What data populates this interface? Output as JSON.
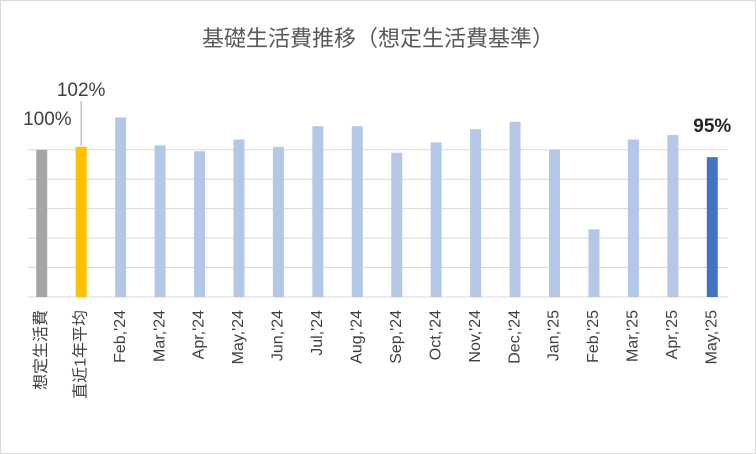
{
  "chart_data": {
    "type": "bar",
    "title": "基礎生活費推移（想定生活費基準）",
    "categories": [
      "想定生活費",
      "直近1年平均",
      "Feb,'24",
      "Mar,'24",
      "Apr,'24",
      "May,'24",
      "Jun,'24",
      "Jul,'24",
      "Aug,'24",
      "Sep,'24",
      "Oct,'24",
      "Nov,'24",
      "Dec,'24",
      "Jan,'25",
      "Feb,'25",
      "Mar,'25",
      "Apr,'25",
      "May,'25"
    ],
    "values": [
      100,
      102,
      122,
      103,
      99,
      107,
      102,
      116,
      116,
      98,
      105,
      114,
      119,
      100,
      46,
      107,
      110,
      95
    ],
    "value_labels": [
      "100%",
      "102%",
      null,
      null,
      null,
      null,
      null,
      null,
      null,
      null,
      null,
      null,
      null,
      null,
      null,
      null,
      null,
      "95%"
    ],
    "colors": [
      "#a5a5a5",
      "#ffc000",
      "#b4c7e7",
      "#b4c7e7",
      "#b4c7e7",
      "#b4c7e7",
      "#b4c7e7",
      "#b4c7e7",
      "#b4c7e7",
      "#b4c7e7",
      "#b4c7e7",
      "#b4c7e7",
      "#b4c7e7",
      "#b4c7e7",
      "#b4c7e7",
      "#b4c7e7",
      "#b4c7e7",
      "#4472c4"
    ],
    "ylim": [
      0,
      125
    ],
    "yticks": [
      0,
      20,
      40,
      60,
      80,
      100
    ],
    "grid": true
  }
}
